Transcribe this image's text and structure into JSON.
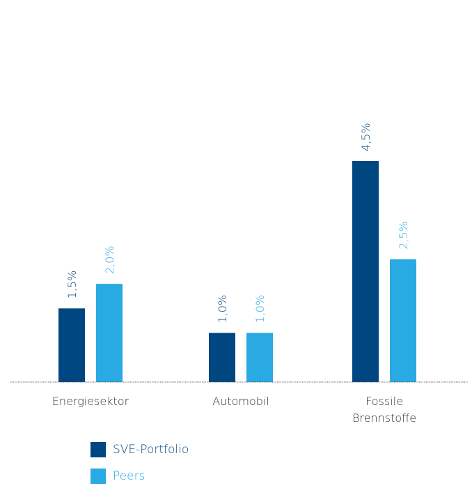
{
  "chart_data": {
    "type": "bar",
    "categories": [
      [
        "Energiesektor"
      ],
      [
        "Automobil"
      ],
      [
        "Fossile",
        "Brennstoffe"
      ]
    ],
    "series": [
      {
        "name": "SVE-Portfolio",
        "values": [
          1.5,
          1.0,
          4.5
        ],
        "labels": [
          "1,5%",
          "1,0%",
          "4,5%"
        ],
        "color": "#004680"
      },
      {
        "name": "Peers",
        "values": [
          2.0,
          1.0,
          2.5
        ],
        "labels": [
          "2,0%",
          "1,0%",
          "2,5%"
        ],
        "color": "#2aaae2"
      }
    ],
    "ylim": [
      0,
      4.5
    ],
    "grid": false,
    "legend_placement": "bottom-left"
  },
  "legend": {
    "items": [
      {
        "label": "SVE-Portfolio",
        "color": "#004680"
      },
      {
        "label": "Peers",
        "color": "#2aaae2"
      }
    ]
  }
}
